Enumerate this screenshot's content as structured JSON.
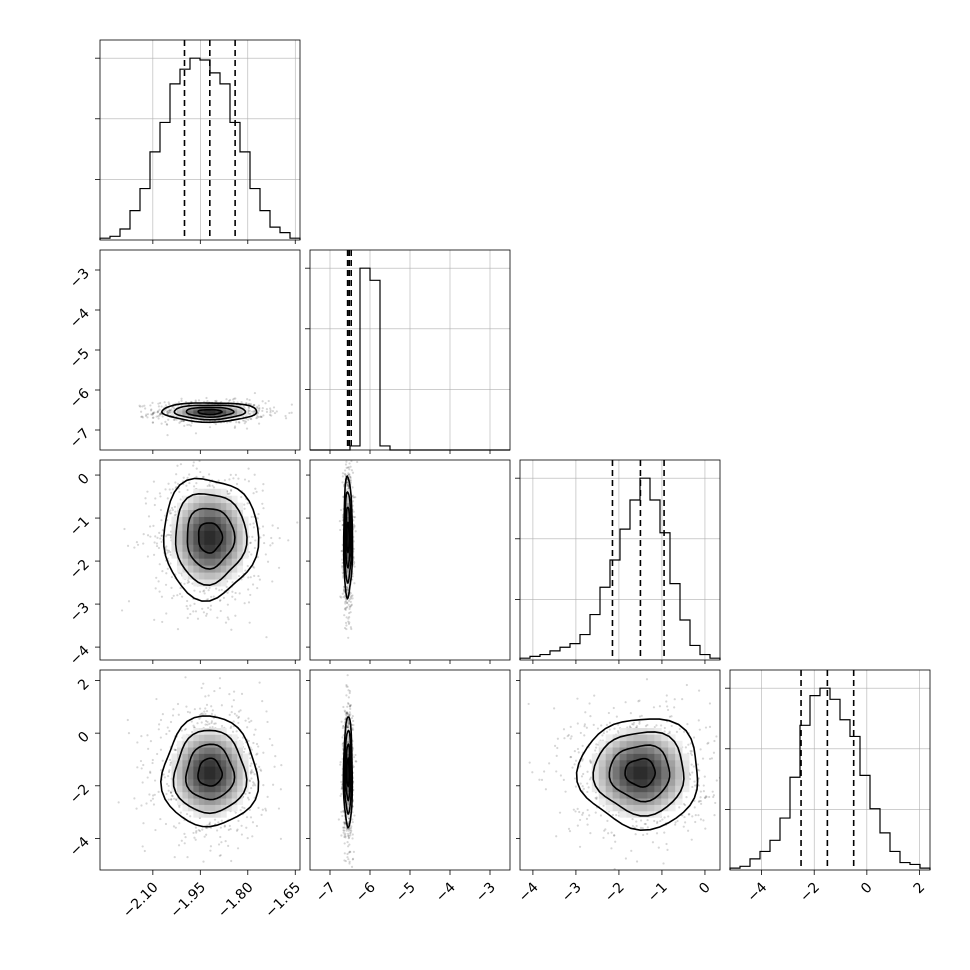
{
  "chart_data": {
    "type": "corner",
    "grid": true,
    "params": [
      {
        "range": [
          -2.267,
          -1.635
        ],
        "ticks": [
          -2.1,
          -1.95,
          -1.8,
          -1.65
        ],
        "tick_labels": [
          "−2.10",
          "−1.95",
          "−1.80",
          "−1.65"
        ],
        "quantiles": [
          -2.0,
          -1.92,
          -1.84
        ],
        "hist_counts": [
          0.01,
          0.02,
          0.06,
          0.16,
          0.28,
          0.48,
          0.64,
          0.85,
          0.93,
          0.99,
          0.98,
          0.91,
          0.85,
          0.64,
          0.48,
          0.28,
          0.16,
          0.07,
          0.04,
          0.01
        ]
      },
      {
        "range": [
          -7.5,
          -2.5
        ],
        "ticks": [
          -7,
          -6,
          -5,
          -4,
          -3
        ],
        "tick_labels": [
          "−7",
          "−6",
          "−5",
          "−4",
          "−3"
        ],
        "quantiles": [
          -6.56,
          -6.52,
          -6.47
        ],
        "hist_counts": [
          0,
          0,
          0,
          0,
          0.02,
          0.9,
          0.84,
          0.02,
          0,
          0,
          0,
          0,
          0,
          0,
          0,
          0,
          0,
          0,
          0,
          0
        ]
      },
      {
        "range": [
          -4.3,
          0.35
        ],
        "ticks": [
          -4,
          -3,
          -2,
          -1,
          0
        ],
        "tick_labels": [
          "−4",
          "−3",
          "−2",
          "−1",
          "0"
        ],
        "quantiles": [
          -2.15,
          -1.5,
          -0.95
        ],
        "hist_counts": [
          0.01,
          0.02,
          0.03,
          0.05,
          0.07,
          0.09,
          0.14,
          0.25,
          0.4,
          0.55,
          0.72,
          0.88,
          1.0,
          0.88,
          0.7,
          0.42,
          0.22,
          0.08,
          0.03,
          0.01
        ]
      },
      {
        "range": [
          -5.2,
          2.4
        ],
        "ticks": [
          -4,
          -2,
          0,
          2
        ],
        "tick_labels": [
          "−4",
          "−2",
          "0",
          "2"
        ],
        "quantiles": [
          -2.5,
          -1.5,
          -0.5
        ],
        "hist_counts": [
          0.01,
          0.02,
          0.06,
          0.1,
          0.16,
          0.28,
          0.5,
          0.78,
          0.94,
          0.98,
          0.92,
          0.81,
          0.72,
          0.51,
          0.33,
          0.2,
          0.1,
          0.04,
          0.03,
          0.01
        ]
      }
    ],
    "pairs": [
      {
        "row": 1,
        "col": 0,
        "center": [
          -1.92,
          -6.55
        ],
        "sd": [
          0.075,
          0.12
        ]
      },
      {
        "row": 2,
        "col": 0,
        "center": [
          -1.92,
          -1.45
        ],
        "sd": [
          0.075,
          0.7
        ]
      },
      {
        "row": 2,
        "col": 1,
        "center": [
          -6.55,
          -1.45
        ],
        "sd": [
          0.055,
          0.7
        ]
      },
      {
        "row": 3,
        "col": 0,
        "center": [
          -1.92,
          -1.5
        ],
        "sd": [
          0.075,
          1.05
        ]
      },
      {
        "row": 3,
        "col": 1,
        "center": [
          -6.55,
          -1.5
        ],
        "sd": [
          0.055,
          1.05
        ]
      },
      {
        "row": 3,
        "col": 2,
        "center": [
          -1.5,
          -1.5
        ],
        "sd": [
          0.7,
          1.05
        ]
      }
    ]
  }
}
